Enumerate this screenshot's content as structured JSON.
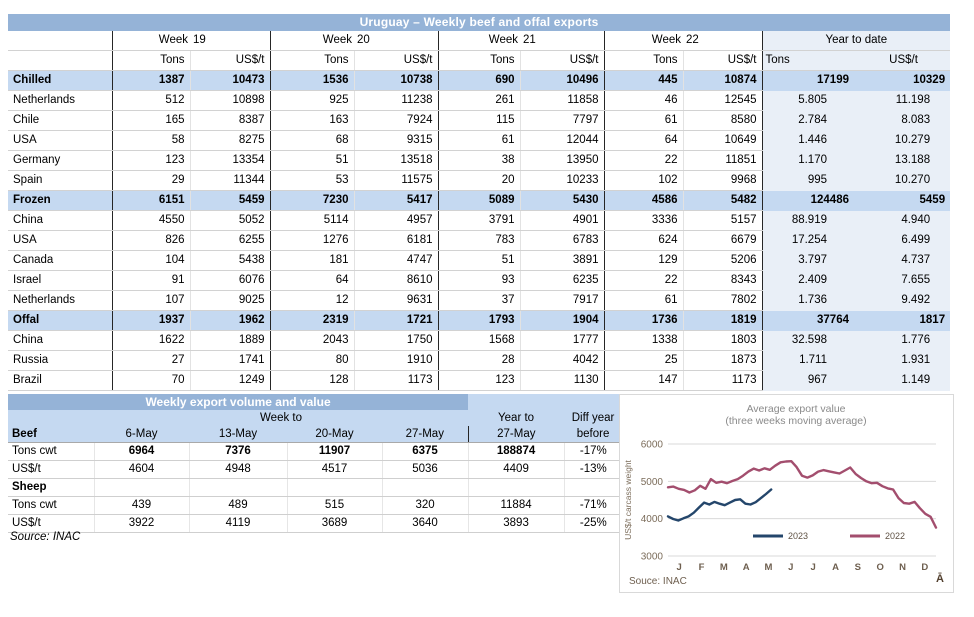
{
  "colors": {
    "title_bar": "#95B3D7",
    "section_row": "#C5D9F1",
    "ytd_background": "#E9EFF7",
    "line_2023": "#24466B",
    "line_2022": "#A34E6E"
  },
  "main_table": {
    "title": "Uruguay – Weekly beef and offal exports",
    "weeks": [
      {
        "label": "Week",
        "num": "19"
      },
      {
        "label": "Week",
        "num": "20"
      },
      {
        "label": "Week",
        "num": "21"
      },
      {
        "label": "Week",
        "num": "22"
      }
    ],
    "ytd_header": "Year to date",
    "sub": {
      "tons": "Tons",
      "usd": "US$/t",
      "ytd_tons": "Tons",
      "ytd_usd": "US$/t"
    },
    "rows": [
      {
        "label": "Chilled",
        "type": "section",
        "values": [
          "1387",
          "10473",
          "1536",
          "10738",
          "690",
          "10496",
          "445",
          "10874",
          "17199",
          "10329"
        ]
      },
      {
        "label": "Netherlands",
        "type": "data",
        "values": [
          "512",
          "10898",
          "925",
          "11238",
          "261",
          "11858",
          "46",
          "12545",
          "5.805",
          "11.198"
        ]
      },
      {
        "label": "Chile",
        "type": "data",
        "values": [
          "165",
          "8387",
          "163",
          "7924",
          "115",
          "7797",
          "61",
          "8580",
          "2.784",
          "8.083"
        ]
      },
      {
        "label": "USA",
        "type": "data",
        "values": [
          "58",
          "8275",
          "68",
          "9315",
          "61",
          "12044",
          "64",
          "10649",
          "1.446",
          "10.279"
        ]
      },
      {
        "label": "Germany",
        "type": "data",
        "values": [
          "123",
          "13354",
          "51",
          "13518",
          "38",
          "13950",
          "22",
          "11851",
          "1.170",
          "13.188"
        ]
      },
      {
        "label": "Spain",
        "type": "data",
        "values": [
          "29",
          "11344",
          "53",
          "11575",
          "20",
          "10233",
          "102",
          "9968",
          "995",
          "10.270"
        ]
      },
      {
        "label": "Frozen",
        "type": "section",
        "values": [
          "6151",
          "5459",
          "7230",
          "5417",
          "5089",
          "5430",
          "4586",
          "5482",
          "124486",
          "5459"
        ]
      },
      {
        "label": "China",
        "type": "data",
        "values": [
          "4550",
          "5052",
          "5114",
          "4957",
          "3791",
          "4901",
          "3336",
          "5157",
          "88.919",
          "4.940"
        ]
      },
      {
        "label": "USA",
        "type": "data",
        "values": [
          "826",
          "6255",
          "1276",
          "6181",
          "783",
          "6783",
          "624",
          "6679",
          "17.254",
          "6.499"
        ]
      },
      {
        "label": "Canada",
        "type": "data",
        "values": [
          "104",
          "5438",
          "181",
          "4747",
          "51",
          "3891",
          "129",
          "5206",
          "3.797",
          "4.737"
        ]
      },
      {
        "label": "Israel",
        "type": "data",
        "values": [
          "91",
          "6076",
          "64",
          "8610",
          "93",
          "6235",
          "22",
          "8343",
          "2.409",
          "7.655"
        ]
      },
      {
        "label": "Netherlands",
        "type": "data",
        "values": [
          "107",
          "9025",
          "12",
          "9631",
          "37",
          "7917",
          "61",
          "7802",
          "1.736",
          "9.492"
        ]
      },
      {
        "label": "Offal",
        "type": "section",
        "values": [
          "1937",
          "1962",
          "2319",
          "1721",
          "1793",
          "1904",
          "1736",
          "1819",
          "37764",
          "1817"
        ]
      },
      {
        "label": "China",
        "type": "data",
        "values": [
          "1622",
          "1889",
          "2043",
          "1750",
          "1568",
          "1777",
          "1338",
          "1803",
          "32.598",
          "1.776"
        ]
      },
      {
        "label": "Russia",
        "type": "data",
        "values": [
          "27",
          "1741",
          "80",
          "1910",
          "28",
          "4042",
          "25",
          "1873",
          "1.711",
          "1.931"
        ]
      },
      {
        "label": "Brazil",
        "type": "data",
        "values": [
          "70",
          "1249",
          "128",
          "1173",
          "123",
          "1130",
          "147",
          "1173",
          "967",
          "1.149"
        ]
      }
    ]
  },
  "weekly_table": {
    "title": "Weekly export volume and value",
    "week_to": "Week to",
    "year_to": "Year to",
    "diff_year": "Diff year",
    "col_headers": {
      "first": "Beef",
      "d1": "6-May",
      "d2": "13-May",
      "d3": "20-May",
      "d4": "27-May",
      "ytd": "27-May",
      "diff": "before"
    },
    "rows": [
      {
        "label": "Tons cwt",
        "bold_values": true,
        "values": [
          "6964",
          "7376",
          "11907",
          "6375",
          "188874",
          "-17%"
        ]
      },
      {
        "label": "US$/t",
        "values": [
          "4604",
          "4948",
          "4517",
          "5036",
          "4409",
          "-13%"
        ]
      },
      {
        "label": "Sheep",
        "subsection": true,
        "values": [
          "",
          "",
          "",
          "",
          "",
          ""
        ]
      },
      {
        "label": "Tons cwt",
        "values": [
          "439",
          "489",
          "515",
          "320",
          "11884",
          "-71%"
        ]
      },
      {
        "label": "US$/t",
        "values": [
          "3922",
          "4119",
          "3689",
          "3640",
          "3893",
          "-25%"
        ]
      }
    ],
    "source": "Source: INAC"
  },
  "chart_data": {
    "type": "line",
    "title": "Average export  value",
    "subtitle": "(three weeks moving average)",
    "ylabel": "US$/t carcass weight",
    "ylim": [
      3000,
      6000
    ],
    "yticks": [
      3000,
      4000,
      5000,
      6000
    ],
    "x_labels": [
      "J",
      "F",
      "M",
      "A",
      "M",
      "J",
      "J",
      "A",
      "S",
      "O",
      "N",
      "D"
    ],
    "grid": true,
    "legend_position": "bottom-inside",
    "source": "Souce: INAC",
    "corner_mark": "Ā",
    "series": [
      {
        "name": "2023",
        "color": "#24466B",
        "x_span": [
          0,
          0.385
        ],
        "values": [
          4060,
          3990,
          3950,
          4010,
          4060,
          4160,
          4300,
          4430,
          4380,
          4450,
          4400,
          4360,
          4430,
          4500,
          4520,
          4400,
          4380,
          4440,
          4550,
          4660,
          4780
        ]
      },
      {
        "name": "2022",
        "color": "#A34E6E",
        "x_span": [
          0,
          1
        ],
        "values": [
          4840,
          4860,
          4800,
          4770,
          4700,
          4760,
          4880,
          4800,
          5060,
          4960,
          4990,
          4950,
          5010,
          5060,
          5150,
          5260,
          5340,
          5290,
          5350,
          5310,
          5420,
          5510,
          5530,
          5540,
          5380,
          5150,
          5100,
          5160,
          5260,
          5300,
          5270,
          5240,
          5210,
          5290,
          5370,
          5200,
          5090,
          5000,
          4950,
          4960,
          4870,
          4810,
          4780,
          4550,
          4420,
          4400,
          4450,
          4280,
          4130,
          4050,
          3760
        ]
      }
    ]
  }
}
